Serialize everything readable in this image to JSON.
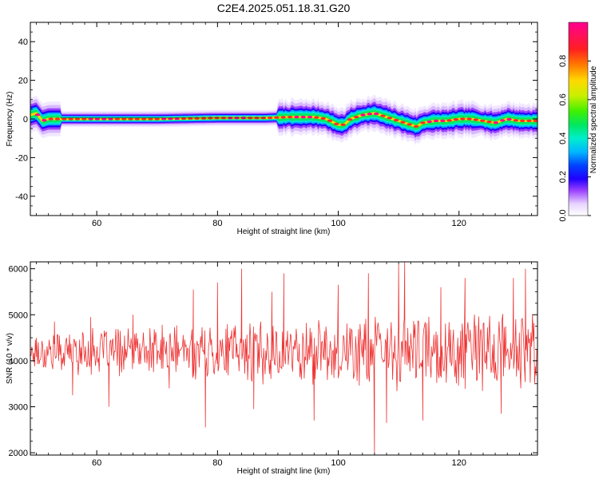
{
  "title": "C2E4.2025.051.18.31.G20",
  "chart_data": [
    {
      "type": "heatmap",
      "xlabel": "Height of straight line (km)",
      "ylabel": "Frequency (Hz)",
      "xlim": [
        49,
        133
      ],
      "ylim": [
        -50,
        50
      ],
      "xticks": [
        60,
        80,
        100,
        120
      ],
      "yticks": [
        -40,
        -20,
        0,
        20,
        40
      ],
      "colorbar_label": "Normalized spectral amplitude",
      "colorbar_ticks": [
        "0.0",
        "0.2",
        "0.4",
        "0.6",
        "0.8"
      ],
      "colorbar_range": [
        0,
        1
      ],
      "ridge": {
        "x": [
          49,
          50,
          51,
          52,
          54,
          60,
          70,
          80,
          88,
          92,
          96,
          98,
          100,
          101,
          102,
          104,
          106,
          108,
          110,
          112,
          113,
          114,
          116,
          118,
          120,
          122,
          124,
          126,
          128,
          130,
          133
        ],
        "y": [
          2,
          3,
          -1,
          0,
          0,
          0,
          0,
          0.5,
          0.5,
          1,
          1,
          0,
          -3,
          -3,
          0,
          2,
          3,
          1,
          -1,
          -3,
          -4,
          -2,
          -1,
          -1,
          0,
          0,
          -1,
          -2,
          0,
          -1,
          -1
        ]
      }
    },
    {
      "type": "line",
      "xlabel": "Height of straight line (km)",
      "ylabel": "SNR (10 * v/v)",
      "xlim": [
        49,
        133
      ],
      "ylim": [
        1950,
        6150
      ],
      "xticks": [
        60,
        80,
        100,
        120
      ],
      "yticks": [
        2000,
        3000,
        4000,
        5000,
        6000
      ],
      "color": "#ee3333",
      "noise": {
        "seed": 17,
        "step_km": 0.12,
        "mean": 4200,
        "amplitude_start": 350,
        "amplitude_end": 750
      },
      "spikes": [
        {
          "x": 50,
          "y": 4500
        },
        {
          "x": 53,
          "y": 4850
        },
        {
          "x": 56,
          "y": 3250
        },
        {
          "x": 59,
          "y": 4950
        },
        {
          "x": 62,
          "y": 3000
        },
        {
          "x": 66,
          "y": 5000
        },
        {
          "x": 72,
          "y": 3400
        },
        {
          "x": 76,
          "y": 5550
        },
        {
          "x": 78,
          "y": 2550
        },
        {
          "x": 80,
          "y": 5700
        },
        {
          "x": 84,
          "y": 6000
        },
        {
          "x": 86,
          "y": 2950
        },
        {
          "x": 89,
          "y": 5500
        },
        {
          "x": 91,
          "y": 5900
        },
        {
          "x": 96,
          "y": 2700
        },
        {
          "x": 100,
          "y": 5650
        },
        {
          "x": 105,
          "y": 5900
        },
        {
          "x": 106,
          "y": 1950
        },
        {
          "x": 108,
          "y": 2650
        },
        {
          "x": 110,
          "y": 6100
        },
        {
          "x": 111,
          "y": 6150
        },
        {
          "x": 114,
          "y": 2700
        },
        {
          "x": 117,
          "y": 5600
        },
        {
          "x": 121,
          "y": 5800
        },
        {
          "x": 127,
          "y": 2850
        },
        {
          "x": 129,
          "y": 5800
        },
        {
          "x": 131,
          "y": 6000
        },
        {
          "x": 133,
          "y": 3400
        }
      ]
    }
  ]
}
